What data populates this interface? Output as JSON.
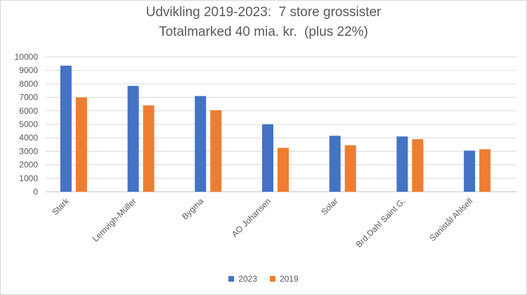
{
  "chart_data": {
    "type": "bar",
    "title_lines": [
      "Udvikling 2019-2023:  7 store grossister",
      "Totalmarked 40 mia. kr.  (plus 22%)"
    ],
    "categories": [
      "Stark",
      "Lemvigh-Müller",
      "Bygma",
      "AO Johansen",
      "Solar",
      "Brd.Dahl Saint G.",
      "Sanistål Ahlsell"
    ],
    "series": [
      {
        "name": "2023",
        "color": "#4472C4",
        "values": [
          9350,
          7850,
          7100,
          5000,
          4150,
          4100,
          3050
        ]
      },
      {
        "name": "2019",
        "color": "#ED7D31",
        "values": [
          7000,
          6400,
          6050,
          3250,
          3450,
          3900,
          3150
        ]
      }
    ],
    "yticks": [
      "0",
      "1000",
      "2000",
      "3000",
      "4000",
      "5000",
      "6000",
      "7000",
      "8000",
      "9000",
      "10000"
    ],
    "ylim": [
      0,
      10000
    ],
    "grid": true,
    "legend_position": "bottom"
  }
}
